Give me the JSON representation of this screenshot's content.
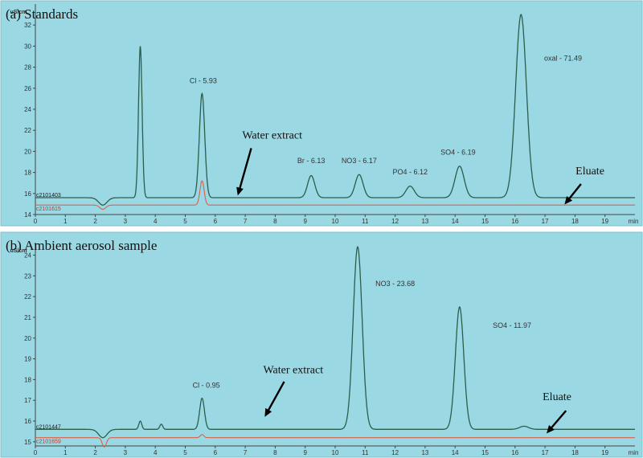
{
  "colors": {
    "background": "#9ad8e4",
    "sample_trace": "#2d5e4c",
    "blank_trace": "#d9624a",
    "axis": "#444444"
  },
  "chart_data": [
    {
      "type": "line",
      "title": "(a) Standards",
      "ylabel": "uS/cm",
      "xunit": "min",
      "xlim": [
        0,
        20
      ],
      "ylim": [
        14,
        34
      ],
      "x_ticks": [
        0,
        1,
        2,
        3,
        4,
        5,
        6,
        7,
        8,
        9,
        10,
        11,
        12,
        13,
        14,
        15,
        16,
        17,
        18,
        19
      ],
      "y_ticks": [
        14,
        16,
        18,
        20,
        22,
        24,
        26,
        28,
        30,
        32
      ],
      "baseline_labels": [
        "c2101403",
        "c2101615"
      ],
      "series": [
        {
          "kind": "sample",
          "baseline": 15.6,
          "dips": [
            {
              "t": 2.25,
              "depth": 0.7,
              "w": 0.14
            }
          ],
          "peaks": [
            {
              "t": 3.5,
              "h": 30,
              "w": 0.06
            },
            {
              "t": 5.56,
              "h": 25.5,
              "w": 0.09
            },
            {
              "t": 9.2,
              "h": 17.7,
              "w": 0.12
            },
            {
              "t": 10.8,
              "h": 17.8,
              "w": 0.13
            },
            {
              "t": 12.5,
              "h": 16.7,
              "w": 0.14
            },
            {
              "t": 14.15,
              "h": 18.6,
              "w": 0.15
            },
            {
              "t": 16.2,
              "h": 33,
              "w": 0.18
            }
          ]
        },
        {
          "kind": "blank",
          "baseline": 14.9,
          "dips": [
            {
              "t": 2.25,
              "depth": 0.4,
              "w": 0.1
            }
          ],
          "peaks": [
            {
              "t": 5.56,
              "h": 17.2,
              "w": 0.07
            }
          ]
        }
      ],
      "peak_labels": [
        {
          "text": "Cl - 5.93",
          "x": 5.6,
          "y": 26.5
        },
        {
          "text": "Br - 6.13",
          "x": 9.2,
          "y": 18.9
        },
        {
          "text": "NO3 - 6.17",
          "x": 10.8,
          "y": 18.9
        },
        {
          "text": "PO4 - 6.12",
          "x": 12.5,
          "y": 17.8
        },
        {
          "text": "SO4 - 6.19",
          "x": 14.1,
          "y": 19.7
        },
        {
          "text": "oxal - 71.49",
          "x": 17.6,
          "y": 28.6
        }
      ],
      "annotations": [
        {
          "text": "Water extract",
          "x": 7.9,
          "y": 21.2,
          "arrow_from": [
            7.2,
            20.3
          ],
          "arrow_to": [
            6.75,
            15.8
          ]
        },
        {
          "text": "Eluate",
          "x": 18.5,
          "y": 17.8,
          "arrow_from": [
            18.2,
            16.9
          ],
          "arrow_to": [
            17.65,
            14.95
          ]
        }
      ]
    },
    {
      "type": "line",
      "title": "(b) Ambient aerosol sample",
      "ylabel": "uS/cm",
      "xunit": "min",
      "xlim": [
        0,
        20
      ],
      "ylim": [
        14.8,
        24.6
      ],
      "x_ticks": [
        0,
        1,
        2,
        3,
        4,
        5,
        6,
        7,
        8,
        9,
        10,
        11,
        12,
        13,
        14,
        15,
        16,
        17,
        18,
        19
      ],
      "y_ticks": [
        15,
        16,
        17,
        18,
        19,
        20,
        21,
        22,
        23,
        24
      ],
      "baseline_labels": [
        "c2101447",
        "c2101659"
      ],
      "series": [
        {
          "kind": "sample",
          "baseline": 15.6,
          "dips": [
            {
              "t": 2.25,
              "depth": 0.4,
              "w": 0.14
            }
          ],
          "peaks": [
            {
              "t": 3.5,
              "h": 16.0,
              "w": 0.05
            },
            {
              "t": 4.2,
              "h": 15.85,
              "w": 0.05
            },
            {
              "t": 5.56,
              "h": 17.1,
              "w": 0.08
            },
            {
              "t": 10.75,
              "h": 24.4,
              "w": 0.15
            },
            {
              "t": 14.15,
              "h": 21.5,
              "w": 0.14
            },
            {
              "t": 16.3,
              "h": 15.75,
              "w": 0.15
            }
          ]
        },
        {
          "kind": "blank",
          "baseline": 15.2,
          "dips": [
            {
              "t": 2.3,
              "depth": 0.45,
              "w": 0.07
            }
          ],
          "peaks": [
            {
              "t": 5.56,
              "h": 15.35,
              "w": 0.06
            }
          ]
        }
      ],
      "peak_labels": [
        {
          "text": "Cl - 0.95",
          "x": 5.7,
          "y": 17.6
        },
        {
          "text": "NO3 - 23.68",
          "x": 12.0,
          "y": 22.5
        },
        {
          "text": "SO4 - 11.97",
          "x": 15.9,
          "y": 20.5
        }
      ],
      "annotations": [
        {
          "text": "Water extract",
          "x": 8.6,
          "y": 18.3,
          "arrow_from": [
            8.3,
            17.9
          ],
          "arrow_to": [
            7.65,
            16.2
          ]
        },
        {
          "text": "Eluate",
          "x": 17.4,
          "y": 17.0,
          "arrow_from": [
            17.7,
            16.5
          ],
          "arrow_to": [
            17.05,
            15.4
          ]
        }
      ]
    }
  ]
}
